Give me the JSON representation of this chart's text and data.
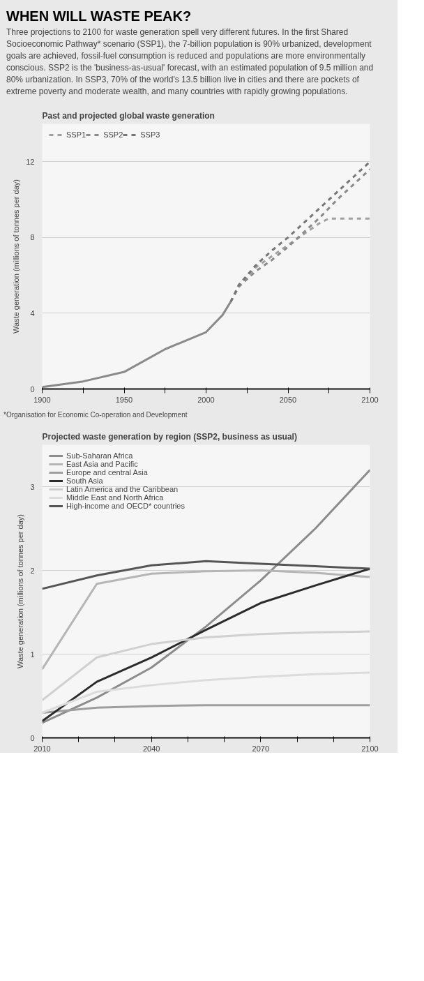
{
  "chart_data": [
    {
      "type": "line",
      "title": "Past and projected global waste generation",
      "ylabel": "Waste generation (millions of tonnes per day)",
      "annotations": [
        "WHEN WILL WASTE PEAK?",
        "Three projections to 2100 for waste generation spell very different futures. In the first Shared Socioeconomic Pathway* scenario (SSP1), the 7-billion population is 90% urbanized, development goals are achieved, fossil-fuel consumption is reduced and populations are more environmentally conscious. SSP2 is the 'business-as-usual' forecast, with an estimated population of 9.5 million and 80% urbanization. In SSP3, 70% of the world's 13.5 billion live in cities and there are pockets of extreme poverty and moderate wealth, and many countries with rapidly growing populations.",
        "*Organisation for Economic Co-operation and Development"
      ],
      "xlim": [
        1900,
        2100
      ],
      "xticks": [
        1900,
        {
          "value": 1925,
          "label": null
        },
        1950,
        {
          "value": 1975,
          "label": null
        },
        2000,
        {
          "value": 2025,
          "label": null
        },
        2050,
        {
          "value": 2075,
          "label": null
        },
        2100
      ],
      "ylim": [
        0,
        14
      ],
      "yticks": [
        0,
        4,
        8,
        12
      ],
      "grid": "y",
      "legend": "top left",
      "series": [
        {
          "color": "#8a8a8a",
          "line_style": "solid",
          "x": [
            1900,
            1925,
            1950,
            1975,
            2000,
            2010,
            2015
          ],
          "values": [
            0.1,
            0.4,
            0.9,
            2.1,
            3.0,
            3.9,
            4.6
          ]
        },
        {
          "name": "SSP1",
          "color": "#a0a0a0",
          "line_style": "dashed",
          "x": [
            2015,
            2020,
            2030,
            2040,
            2050,
            2060,
            2070,
            2075,
            2080,
            2090,
            2100
          ],
          "values": [
            4.6,
            5.4,
            6.4,
            7.0,
            7.6,
            8.2,
            8.8,
            9.0,
            9.0,
            9.0,
            9.0
          ]
        },
        {
          "name": "SSP2",
          "color": "#8a8a8a",
          "line_style": "dashed",
          "x": [
            2015,
            2020,
            2030,
            2040,
            2050,
            2060,
            2070,
            2080,
            2090,
            2100
          ],
          "values": [
            4.6,
            5.4,
            6.2,
            6.8,
            7.5,
            8.3,
            9.1,
            10.0,
            10.8,
            11.6
          ]
        },
        {
          "name": "SSP3",
          "color": "#767676",
          "line_style": "dashed",
          "x": [
            2015,
            2020,
            2030,
            2040,
            2050,
            2060,
            2070,
            2080,
            2090,
            2100
          ],
          "values": [
            4.6,
            5.5,
            6.5,
            7.3,
            8.0,
            8.8,
            9.6,
            10.4,
            11.2,
            12.0
          ]
        }
      ]
    },
    {
      "type": "line",
      "title": "Projected waste generation by region (SSP2, business as usual)",
      "ylabel": "Waste generation (millions of tonnes per day)",
      "xlim": [
        2010,
        2100
      ],
      "xticks": [
        2010,
        {
          "value": 2020,
          "label": null
        },
        {
          "value": 2030,
          "label": null
        },
        2040,
        {
          "value": 2050,
          "label": null
        },
        {
          "value": 2060,
          "label": null
        },
        2070,
        {
          "value": 2080,
          "label": null
        },
        {
          "value": 2090,
          "label": null
        },
        2100
      ],
      "ylim": [
        0,
        3.5
      ],
      "yticks": [
        0,
        1,
        2,
        3
      ],
      "grid": "y",
      "legend": "top left",
      "x": [
        2010,
        2025,
        2040,
        2055,
        2070,
        2085,
        2100
      ],
      "series": [
        {
          "name": "Sub-Saharan Africa",
          "color": "#8c8c8c",
          "values": [
            0.18,
            0.48,
            0.84,
            1.33,
            1.88,
            2.5,
            3.2
          ]
        },
        {
          "name": "East Asia and Pacific",
          "color": "#b5b5b5",
          "values": [
            0.82,
            1.84,
            1.96,
            1.99,
            2.0,
            1.97,
            1.92
          ]
        },
        {
          "name": "Europe and central Asia",
          "color": "#9e9e9e",
          "values": [
            0.3,
            0.36,
            0.38,
            0.39,
            0.39,
            0.39,
            0.39
          ]
        },
        {
          "name": "South Asia",
          "color": "#2b2b2b",
          "values": [
            0.2,
            0.67,
            0.96,
            1.29,
            1.61,
            1.82,
            2.02
          ]
        },
        {
          "name": "Latin America and the Caribbean",
          "color": "#d0d0d0",
          "values": [
            0.45,
            0.96,
            1.12,
            1.2,
            1.24,
            1.26,
            1.27
          ]
        },
        {
          "name": "Middle East and North Africa",
          "color": "#dcdcdc",
          "values": [
            0.3,
            0.55,
            0.63,
            0.69,
            0.73,
            0.76,
            0.78
          ]
        },
        {
          "name": "High-income and OECD* countries",
          "color": "#555555",
          "values": [
            1.78,
            1.94,
            2.06,
            2.11,
            2.08,
            2.05,
            2.02
          ]
        }
      ]
    }
  ]
}
